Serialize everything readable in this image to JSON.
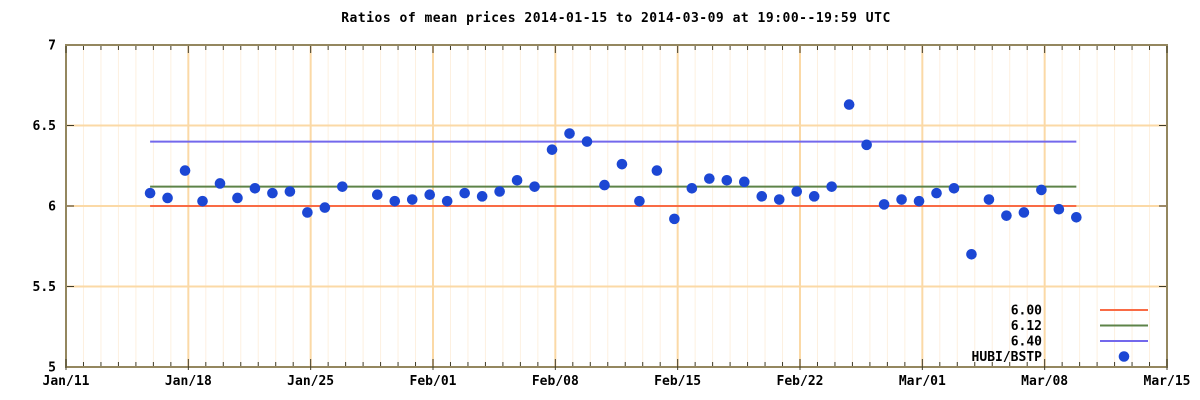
{
  "chart_data": {
    "type": "scatter",
    "title": "Ratios of mean prices 2014-01-15 to 2014-03-09 at 19:00--19:59 UTC",
    "xlabel": "",
    "ylabel": "",
    "ylim": [
      5,
      7
    ],
    "y_ticks": [
      {
        "value": 5,
        "label": "5"
      },
      {
        "value": 5.5,
        "label": "5.5"
      },
      {
        "value": 6,
        "label": "6"
      },
      {
        "value": 6.5,
        "label": "6.5"
      },
      {
        "value": 7,
        "label": "7"
      }
    ],
    "x_ticks": [
      {
        "label": "Jan/11",
        "day_offset": 0
      },
      {
        "label": "Jan/18",
        "day_offset": 7
      },
      {
        "label": "Jan/25",
        "day_offset": 14
      },
      {
        "label": "Feb/01",
        "day_offset": 21
      },
      {
        "label": "Feb/08",
        "day_offset": 28
      },
      {
        "label": "Feb/15",
        "day_offset": 35
      },
      {
        "label": "Feb/22",
        "day_offset": 42
      },
      {
        "label": "Mar/01",
        "day_offset": 49
      },
      {
        "label": "Mar/08",
        "day_offset": 56
      },
      {
        "label": "Mar/15",
        "day_offset": 63
      }
    ],
    "x_range_dates": [
      "2014-01-11",
      "2014-03-15"
    ],
    "x_minor_tick_days": 1,
    "point_time_utc": "19:00--19:59",
    "point_hour_utc": 19.5,
    "grid": {
      "horizontal_values": [
        5.5,
        6.0,
        6.5
      ],
      "vertical_daily": true,
      "vertical_weekly_emphasis": true
    },
    "ref_lines": [
      {
        "label": "6.00",
        "value": 6.0,
        "color": "#f96b45"
      },
      {
        "label": "6.12",
        "value": 6.12,
        "color": "#5d8348"
      },
      {
        "label": "6.40",
        "value": 6.4,
        "color": "#7368ec"
      }
    ],
    "legend_position": "bottom-right",
    "series": [
      {
        "name": "HUBI/BSTP",
        "marker": "circle",
        "color": "#1c47d4",
        "points": [
          [
            "2014-01-15",
            6.08
          ],
          [
            "2014-01-16",
            6.05
          ],
          [
            "2014-01-17",
            6.22
          ],
          [
            "2014-01-18",
            6.03
          ],
          [
            "2014-01-19",
            6.14
          ],
          [
            "2014-01-20",
            6.05
          ],
          [
            "2014-01-21",
            6.11
          ],
          [
            "2014-01-22",
            6.08
          ],
          [
            "2014-01-23",
            6.09
          ],
          [
            "2014-01-24",
            5.96
          ],
          [
            "2014-01-25",
            5.99
          ],
          [
            "2014-01-26",
            6.12
          ],
          [
            "2014-01-28",
            6.07
          ],
          [
            "2014-01-29",
            6.03
          ],
          [
            "2014-01-30",
            6.04
          ],
          [
            "2014-01-31",
            6.07
          ],
          [
            "2014-02-01",
            6.03
          ],
          [
            "2014-02-02",
            6.08
          ],
          [
            "2014-02-03",
            6.06
          ],
          [
            "2014-02-04",
            6.09
          ],
          [
            "2014-02-05",
            6.16
          ],
          [
            "2014-02-06",
            6.12
          ],
          [
            "2014-02-07",
            6.35
          ],
          [
            "2014-02-08",
            6.45
          ],
          [
            "2014-02-09",
            6.4
          ],
          [
            "2014-02-10",
            6.13
          ],
          [
            "2014-02-11",
            6.26
          ],
          [
            "2014-02-12",
            6.03
          ],
          [
            "2014-02-13",
            6.22
          ],
          [
            "2014-02-14",
            5.92
          ],
          [
            "2014-02-15",
            6.11
          ],
          [
            "2014-02-16",
            6.17
          ],
          [
            "2014-02-17",
            6.16
          ],
          [
            "2014-02-18",
            6.15
          ],
          [
            "2014-02-19",
            6.06
          ],
          [
            "2014-02-20",
            6.04
          ],
          [
            "2014-02-21",
            6.09
          ],
          [
            "2014-02-22",
            6.06
          ],
          [
            "2014-02-23",
            6.12
          ],
          [
            "2014-02-24",
            6.63
          ],
          [
            "2014-02-25",
            6.38
          ],
          [
            "2014-02-26",
            6.01
          ],
          [
            "2014-02-27",
            6.04
          ],
          [
            "2014-02-28",
            6.03
          ],
          [
            "2014-03-01",
            6.08
          ],
          [
            "2014-03-02",
            6.11
          ],
          [
            "2014-03-03",
            5.7
          ],
          [
            "2014-03-04",
            6.04
          ],
          [
            "2014-03-05",
            5.94
          ],
          [
            "2014-03-06",
            5.96
          ],
          [
            "2014-03-07",
            6.1
          ],
          [
            "2014-03-08",
            5.98
          ],
          [
            "2014-03-09",
            5.93
          ]
        ]
      }
    ]
  },
  "style": {
    "background": "#ffffff",
    "text_color": "#000000",
    "border_color": "#94875f",
    "grid_daily_color": "#fdf0e0",
    "grid_weekly_color": "#fbd9a6",
    "tick_color": "#403c28",
    "point_color": "#1c47d4"
  }
}
